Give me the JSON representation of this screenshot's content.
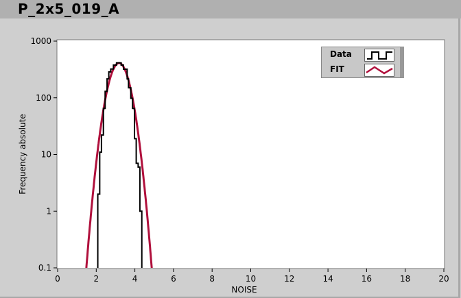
{
  "title": "P_2x5_019_A",
  "chart_data": {
    "type": "line",
    "xlabel": "NOISE",
    "ylabel": "Frequency absolute",
    "xlim": [
      0,
      20
    ],
    "ylim": [
      0.1,
      1000
    ],
    "yscale": "log",
    "xticks": [
      "0",
      "2",
      "4",
      "6",
      "8",
      "10",
      "12",
      "14",
      "16",
      "18",
      "20"
    ],
    "yticks": [
      "1000",
      "100",
      "10",
      "1",
      "0.1"
    ],
    "grid": false,
    "legend_position": "top-right",
    "series": [
      {
        "name": "Data",
        "style": "step",
        "color": "#000000",
        "bins": [
          [
            2.08,
            2
          ],
          [
            2.18,
            11
          ],
          [
            2.27,
            22
          ],
          [
            2.37,
            65
          ],
          [
            2.46,
            130
          ],
          [
            2.56,
            216
          ],
          [
            2.65,
            286
          ],
          [
            2.75,
            322
          ],
          [
            2.89,
            378
          ],
          [
            3.05,
            414
          ],
          [
            3.29,
            378
          ],
          [
            3.41,
            320
          ],
          [
            3.6,
            216
          ],
          [
            3.67,
            150
          ],
          [
            3.79,
            98
          ],
          [
            3.88,
            65
          ],
          [
            3.98,
            19
          ],
          [
            4.07,
            7
          ],
          [
            4.17,
            6
          ],
          [
            4.26,
            1
          ]
        ],
        "end": 4.36
      },
      {
        "name": "FIT",
        "style": "gaussian",
        "color": "#b0103c",
        "amplitude": 410,
        "mean": 3.18,
        "sigma": 0.415
      }
    ]
  }
}
